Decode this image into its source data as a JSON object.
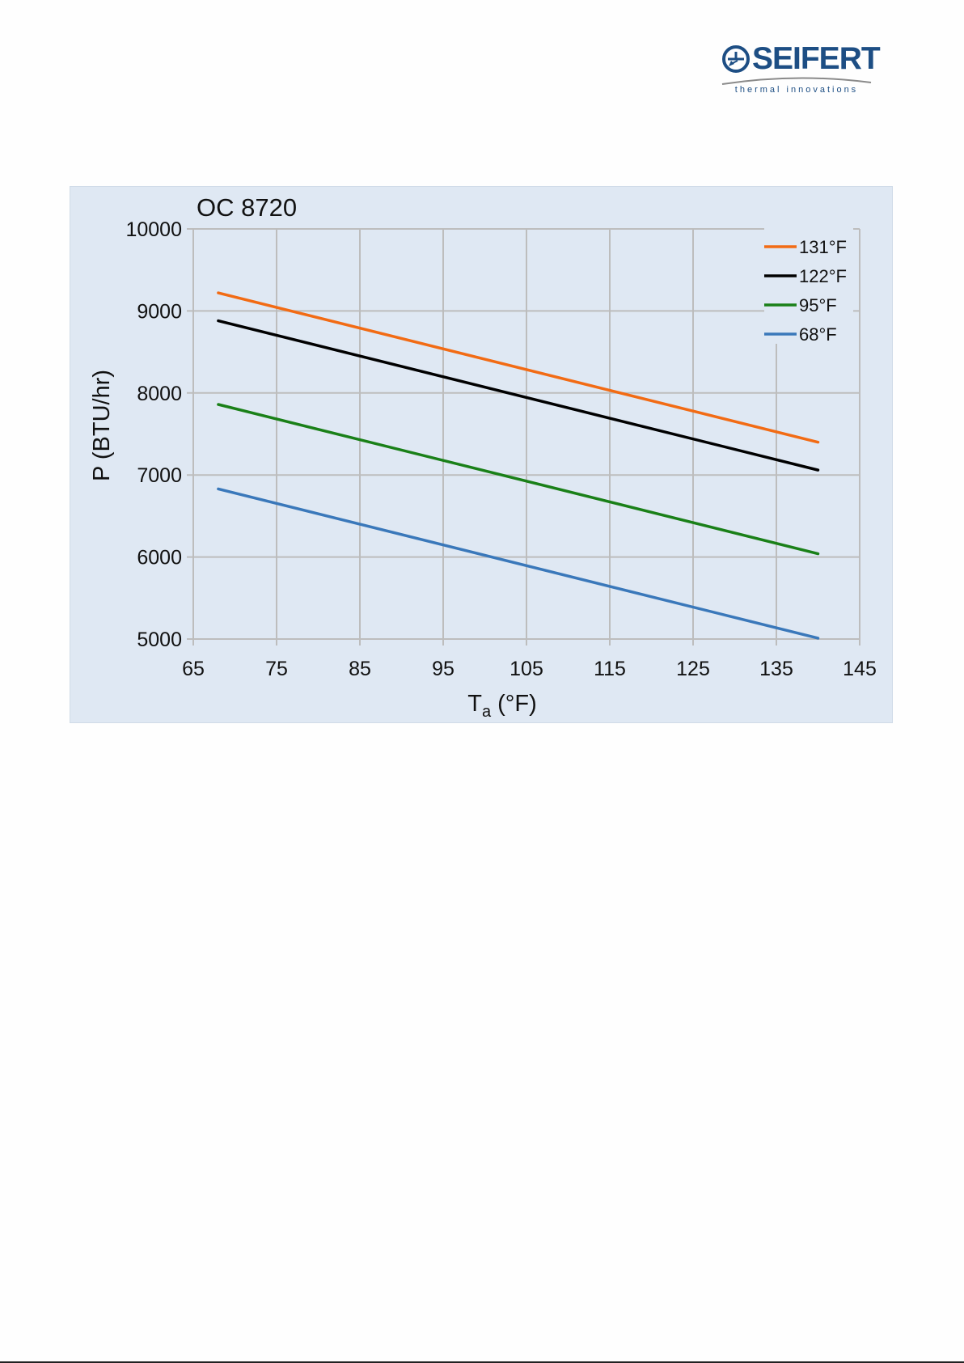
{
  "header": {
    "logo_brand": "SEIFERT",
    "logo_tagline": "thermal innovations"
  },
  "colors": {
    "brand": "#1d4e84",
    "chart_background": "#dfe8f3",
    "grid": "#bdbdbd"
  },
  "chart_data": {
    "type": "line",
    "title": "OC 8720",
    "xlabel": "T",
    "xlabel_sub": "a",
    "xlabel_unit": " (°F)",
    "ylabel": "P (BTU/hr)",
    "xlim": [
      65,
      145
    ],
    "ylim": [
      5000,
      10000
    ],
    "xticks": [
      65,
      75,
      85,
      95,
      105,
      115,
      125,
      135,
      145
    ],
    "yticks": [
      5000,
      6000,
      7000,
      8000,
      9000,
      10000
    ],
    "grid": true,
    "legend_position": "top-right",
    "series": [
      {
        "name": "131°F",
        "color": "#f26b14",
        "x": [
          68,
          140
        ],
        "y": [
          9220,
          7400
        ]
      },
      {
        "name": "122°F",
        "color": "#000000",
        "x": [
          68,
          140
        ],
        "y": [
          8880,
          7060
        ]
      },
      {
        "name": "95°F",
        "color": "#1a8018",
        "x": [
          68,
          140
        ],
        "y": [
          7860,
          6040
        ]
      },
      {
        "name": "68°F",
        "color": "#3a78ba",
        "x": [
          68,
          140
        ],
        "y": [
          6830,
          5010
        ]
      }
    ]
  }
}
